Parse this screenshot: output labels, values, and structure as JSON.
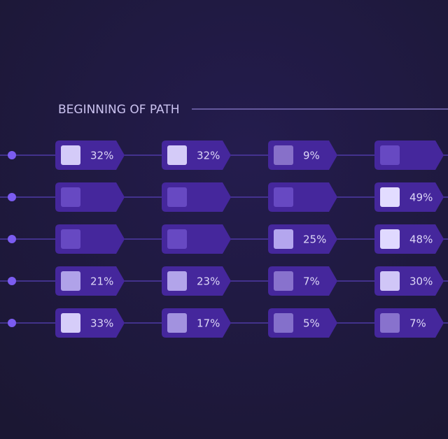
{
  "header": {
    "title": "BEGINNING OF PATH"
  },
  "rows": [
    {
      "cells": [
        {
          "label": "32%",
          "color": "#d4cbf8"
        },
        {
          "label": "32%",
          "color": "#d4cbf8"
        },
        {
          "label": "9%",
          "color": "#8770c9"
        },
        {
          "label": null,
          "color": "#6749c2"
        }
      ]
    },
    {
      "cells": [
        {
          "label": null,
          "color": "#6749c2"
        },
        {
          "label": null,
          "color": "#6749c2"
        },
        {
          "label": null,
          "color": "#6749c2"
        },
        {
          "label": "49%",
          "color": "#e2dcff"
        }
      ]
    },
    {
      "cells": [
        {
          "label": null,
          "color": "#6749c2"
        },
        {
          "label": null,
          "color": "#6749c2"
        },
        {
          "label": "25%",
          "color": "#b4a6ee"
        },
        {
          "label": "48%",
          "color": "#e0d9ff"
        }
      ]
    },
    {
      "cells": [
        {
          "label": "21%",
          "color": "#b0a2e9"
        },
        {
          "label": "23%",
          "color": "#b2a4ea"
        },
        {
          "label": "7%",
          "color": "#8872cd"
        },
        {
          "label": "30%",
          "color": "#d0c6f7"
        }
      ]
    },
    {
      "cells": [
        {
          "label": "33%",
          "color": "#d6cdf9"
        },
        {
          "label": "17%",
          "color": "#a292df"
        },
        {
          "label": "5%",
          "color": "#8470cb"
        },
        {
          "label": "7%",
          "color": "#8872cd"
        }
      ]
    }
  ]
}
